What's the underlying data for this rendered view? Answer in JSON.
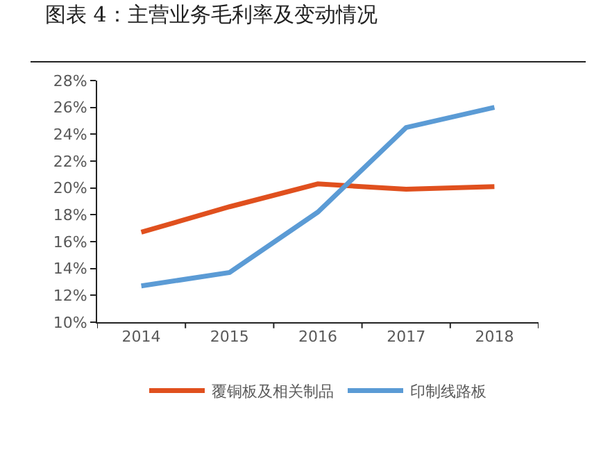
{
  "chart_data": {
    "type": "line",
    "title": "图表 4：主营业务毛利率及变动情况",
    "categories": [
      "2014",
      "2015",
      "2016",
      "2017",
      "2018"
    ],
    "series": [
      {
        "name": "覆铜板及相关制品",
        "color": "#e0501e",
        "values": [
          16.7,
          18.6,
          20.3,
          19.9,
          20.1
        ]
      },
      {
        "name": "印制线路板",
        "color": "#5b9bd5",
        "values": [
          12.7,
          13.7,
          18.2,
          24.5,
          26.0
        ]
      }
    ],
    "ylim": [
      10,
      28
    ],
    "yticks": [
      {
        "value": 10,
        "label": "10%"
      },
      {
        "value": 12,
        "label": "12%"
      },
      {
        "value": 14,
        "label": "14%"
      },
      {
        "value": 16,
        "label": "16%"
      },
      {
        "value": 18,
        "label": "18%"
      },
      {
        "value": 20,
        "label": "20%"
      },
      {
        "value": 22,
        "label": "22%"
      },
      {
        "value": 24,
        "label": "24%"
      },
      {
        "value": 26,
        "label": "26%"
      },
      {
        "value": 28,
        "label": "28%"
      }
    ],
    "grid": false,
    "legend": "bottom",
    "marker": "none",
    "line_style": "solid"
  }
}
